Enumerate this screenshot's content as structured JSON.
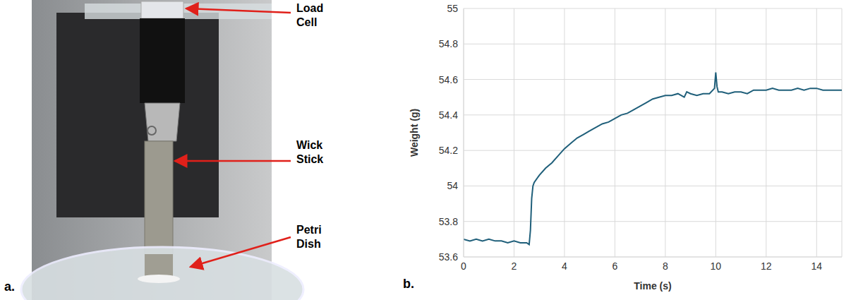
{
  "figure_a": {
    "letter": "a.",
    "labels": [
      "Load Cell",
      "Wick Stick",
      "Petri Dish"
    ]
  },
  "chart_data": {
    "type": "line",
    "panel_letter": "b.",
    "x_label": "Time (s)",
    "y_label": "Weight (g)",
    "color": "#1f5f7a",
    "grid": true,
    "xlim": [
      0,
      15
    ],
    "xticks": [
      0,
      2,
      4,
      6,
      8,
      10,
      12,
      14
    ],
    "ylim": [
      53.6,
      55
    ],
    "yticks": [
      53.6,
      53.8,
      54,
      54.2,
      54.4,
      54.6,
      54.8,
      55
    ],
    "x": [
      0,
      0.25,
      0.5,
      0.75,
      1,
      1.25,
      1.5,
      1.75,
      2,
      2.25,
      2.5,
      2.6,
      2.65,
      2.7,
      2.75,
      2.8,
      3,
      3.25,
      3.5,
      3.75,
      4,
      4.25,
      4.5,
      4.75,
      5,
      5.25,
      5.5,
      5.75,
      6,
      6.25,
      6.5,
      6.75,
      7,
      7.25,
      7.5,
      7.75,
      8,
      8.25,
      8.5,
      8.75,
      8.85,
      9,
      9.25,
      9.5,
      9.75,
      9.95,
      10,
      10.05,
      10.1,
      10.25,
      10.5,
      10.75,
      11,
      11.25,
      11.5,
      11.75,
      12,
      12.25,
      12.5,
      12.75,
      13,
      13.25,
      13.5,
      13.75,
      14,
      14.25,
      14.5,
      14.75,
      15
    ],
    "values": [
      53.7,
      53.69,
      53.7,
      53.69,
      53.7,
      53.69,
      53.69,
      53.68,
      53.69,
      53.68,
      53.68,
      53.67,
      53.75,
      53.93,
      54.0,
      54.02,
      54.06,
      54.1,
      54.13,
      54.17,
      54.21,
      54.24,
      54.27,
      54.29,
      54.31,
      54.33,
      54.35,
      54.36,
      54.38,
      54.4,
      54.41,
      54.43,
      54.45,
      54.47,
      54.49,
      54.5,
      54.51,
      54.51,
      54.52,
      54.5,
      54.53,
      54.52,
      54.51,
      54.52,
      54.52,
      54.55,
      54.64,
      54.56,
      54.53,
      54.53,
      54.52,
      54.53,
      54.53,
      54.52,
      54.54,
      54.54,
      54.54,
      54.55,
      54.54,
      54.54,
      54.54,
      54.55,
      54.54,
      54.55,
      54.55,
      54.54,
      54.54,
      54.54,
      54.54
    ]
  }
}
